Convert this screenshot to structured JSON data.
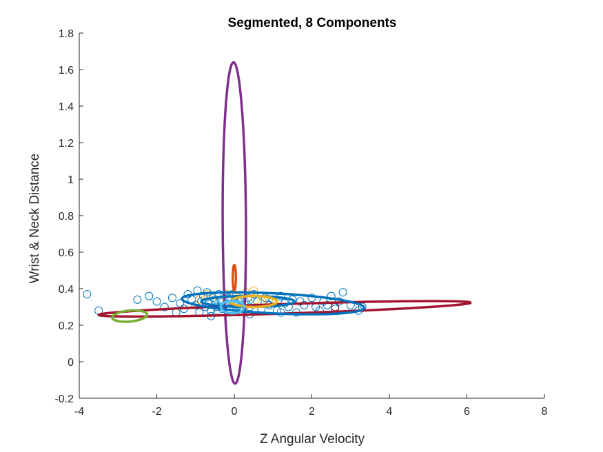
{
  "chart_data": {
    "type": "scatter",
    "title": "Segmented, 8 Components",
    "xlabel": "Z Angular Velocity",
    "ylabel": "Wrist & Neck Distance",
    "xlim": [
      -4,
      8
    ],
    "ylim": [
      -0.2,
      1.8
    ],
    "x_ticks": [
      -4,
      -2,
      0,
      2,
      4,
      6,
      8
    ],
    "x_tick_labels": [
      "-4",
      "-2",
      "0",
      "2",
      "4",
      "6",
      "8"
    ],
    "y_ticks": [
      -0.2,
      0,
      0.2,
      0.4,
      0.6,
      0.8,
      1,
      1.2,
      1.4,
      1.6,
      1.8
    ],
    "y_tick_labels": [
      "-0.2",
      "0",
      "0.2",
      "0.4",
      "0.6",
      "0.8",
      "1",
      "1.2",
      "1.4",
      "1.6",
      "1.8"
    ],
    "grid": false,
    "box": "off",
    "scatter_series": [
      {
        "color": "#0072BD",
        "marker": "open-circle",
        "points": [
          [
            -3.8,
            0.37
          ],
          [
            -3.5,
            0.28
          ],
          [
            -2.5,
            0.34
          ],
          [
            -2.2,
            0.36
          ],
          [
            -2.0,
            0.33
          ],
          [
            -1.8,
            0.3
          ],
          [
            -1.6,
            0.35
          ],
          [
            -1.4,
            0.32
          ],
          [
            -1.3,
            0.29
          ],
          [
            -1.2,
            0.37
          ],
          [
            -1.1,
            0.34
          ],
          [
            -1.0,
            0.31
          ],
          [
            -0.95,
            0.39
          ],
          [
            -0.9,
            0.27
          ],
          [
            -0.85,
            0.33
          ],
          [
            -0.8,
            0.36
          ],
          [
            -0.75,
            0.3
          ],
          [
            -0.7,
            0.38
          ],
          [
            -0.65,
            0.32
          ],
          [
            -0.6,
            0.28
          ],
          [
            -0.55,
            0.35
          ],
          [
            -0.5,
            0.33
          ],
          [
            -0.45,
            0.3
          ],
          [
            -0.4,
            0.37
          ],
          [
            -0.35,
            0.34
          ],
          [
            -0.3,
            0.29
          ],
          [
            -0.25,
            0.36
          ],
          [
            -0.2,
            0.32
          ],
          [
            -0.15,
            0.35
          ],
          [
            -0.1,
            0.3
          ],
          [
            -0.05,
            0.37
          ],
          [
            0.0,
            0.33
          ],
          [
            0.05,
            0.36
          ],
          [
            0.1,
            0.31
          ],
          [
            0.15,
            0.34
          ],
          [
            0.2,
            0.29
          ],
          [
            0.25,
            0.36
          ],
          [
            0.3,
            0.32
          ],
          [
            0.35,
            0.35
          ],
          [
            0.4,
            0.3
          ],
          [
            0.5,
            0.37
          ],
          [
            0.6,
            0.33
          ],
          [
            0.7,
            0.29
          ],
          [
            0.8,
            0.35
          ],
          [
            0.9,
            0.31
          ],
          [
            1.0,
            0.34
          ],
          [
            1.1,
            0.28
          ],
          [
            1.2,
            0.36
          ],
          [
            1.3,
            0.32
          ],
          [
            1.4,
            0.3
          ],
          [
            1.5,
            0.34
          ],
          [
            1.6,
            0.27
          ],
          [
            1.7,
            0.33
          ],
          [
            1.8,
            0.31
          ],
          [
            2.0,
            0.35
          ],
          [
            2.1,
            0.3
          ],
          [
            2.2,
            0.28
          ],
          [
            2.3,
            0.33
          ],
          [
            2.4,
            0.31
          ],
          [
            2.5,
            0.36
          ],
          [
            2.6,
            0.29
          ],
          [
            2.7,
            0.33
          ],
          [
            2.8,
            0.38
          ],
          [
            3.0,
            0.31
          ],
          [
            3.2,
            0.28
          ],
          [
            3.3,
            0.3
          ],
          [
            -0.6,
            0.25
          ],
          [
            0.4,
            0.26
          ],
          [
            1.2,
            0.27
          ],
          [
            -1.5,
            0.27
          ]
        ]
      },
      {
        "color": "#EDB120",
        "marker": "open-circle",
        "points": [
          [
            -0.9,
            0.34
          ],
          [
            -0.6,
            0.36
          ],
          [
            -0.4,
            0.33
          ],
          [
            -0.2,
            0.37
          ],
          [
            0.1,
            0.35
          ],
          [
            0.3,
            0.38
          ],
          [
            0.5,
            0.39
          ],
          [
            0.55,
            0.34
          ],
          [
            0.7,
            0.36
          ],
          [
            0.9,
            0.33
          ],
          [
            -0.7,
            0.37
          ],
          [
            0.2,
            0.34
          ]
        ]
      },
      {
        "color": "#4DBEEE",
        "marker": "open-circle",
        "points": [
          [
            -0.6,
            0.32
          ],
          [
            -0.5,
            0.34
          ],
          [
            -0.4,
            0.31
          ],
          [
            -0.3,
            0.33
          ],
          [
            -0.2,
            0.3
          ],
          [
            -0.1,
            0.34
          ],
          [
            0.0,
            0.31
          ],
          [
            0.1,
            0.33
          ],
          [
            0.2,
            0.3
          ],
          [
            0.3,
            0.32
          ],
          [
            0.4,
            0.34
          ],
          [
            -0.45,
            0.28
          ],
          [
            0.05,
            0.28
          ],
          [
            0.25,
            0.36
          ],
          [
            -0.25,
            0.36
          ],
          [
            0.15,
            0.29
          ]
        ]
      },
      {
        "color": "#A2142F",
        "marker": "open-circle",
        "points": [
          [
            2.6,
            0.3
          ]
        ]
      }
    ],
    "ellipses": [
      {
        "color": "#7E2F8E",
        "center": [
          0.0,
          0.76
        ],
        "semi_axes": [
          0.3,
          0.88
        ],
        "rotation_deg": 1.5
      },
      {
        "color": "#A2142F",
        "center": [
          1.3,
          0.29
        ],
        "semi_axes": [
          4.8,
          0.026
        ],
        "rotation_deg": 0.4
      },
      {
        "color": "#0072BD",
        "center": [
          1.0,
          0.32
        ],
        "semi_axes": [
          2.35,
          0.055
        ],
        "rotation_deg": -0.6
      },
      {
        "color": "#0072BD",
        "center": [
          0.35,
          0.33
        ],
        "semi_axes": [
          1.2,
          0.03
        ],
        "rotation_deg": 0
      },
      {
        "color": "#77AC30",
        "center": [
          -2.7,
          0.25
        ],
        "semi_axes": [
          0.45,
          0.03
        ],
        "rotation_deg": 1
      },
      {
        "color": "#EDB120",
        "center": [
          0.5,
          0.33
        ],
        "semi_axes": [
          0.6,
          0.03
        ],
        "rotation_deg": 0
      },
      {
        "color": "#4DBEEE",
        "center": [
          -0.05,
          0.3
        ],
        "semi_axes": [
          0.3,
          0.035
        ],
        "rotation_deg": 0
      },
      {
        "color": "#D95319",
        "center": [
          0.0,
          0.46
        ],
        "semi_axes": [
          0.04,
          0.07
        ],
        "rotation_deg": 0
      }
    ]
  }
}
